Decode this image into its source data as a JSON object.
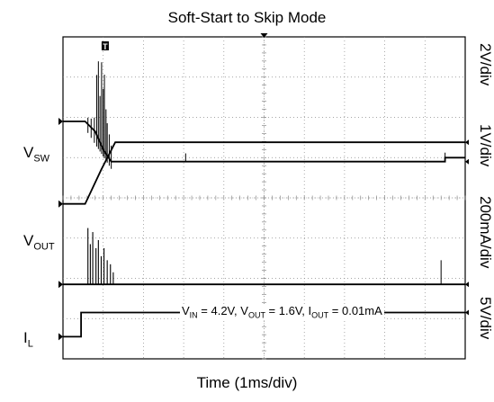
{
  "chart_data": {
    "type": "line",
    "title": "Soft-Start to Skip Mode",
    "xlabel": "Time (1ms/div)",
    "grid": true,
    "divisions": {
      "x": 10,
      "y": 8
    },
    "x_range_ms": [
      0,
      10
    ],
    "channel_labels": [
      {
        "main": "V",
        "sub": "SW"
      },
      {
        "main": "V",
        "sub": "OUT"
      },
      {
        "main": "I",
        "sub": "L"
      }
    ],
    "scales": [
      "2V/div",
      "1V/div",
      "200mA/div",
      "5V/div"
    ],
    "annotation": {
      "vin": "V",
      "vin_sub": "IN",
      "vin_val": " = 4.2V, ",
      "vout": "V",
      "vout_sub": "OUT",
      "vout_val": " = 1.6V, ",
      "iout": "I",
      "iout_sub": "OUT",
      "iout_val": " = 0.01mA"
    },
    "series": [
      {
        "id": "trace-vsw-top",
        "points_ms_div": [
          [
            0,
            2.1
          ],
          [
            0.55,
            2.1
          ],
          [
            0.8,
            2.35
          ],
          [
            1.0,
            2.8
          ],
          [
            1.2,
            3.1
          ],
          [
            9.5,
            3.1
          ],
          [
            9.5,
            3.0
          ],
          [
            10,
            3.0
          ]
        ]
      },
      {
        "id": "trace-vsw-ramp",
        "points_ms_div": [
          [
            0,
            4.15
          ],
          [
            0.55,
            4.15
          ],
          [
            0.95,
            3.3
          ],
          [
            1.3,
            2.62
          ],
          [
            10,
            2.62
          ]
        ]
      },
      {
        "id": "trace-vout",
        "points_ms_div": [
          [
            0,
            6.15
          ],
          [
            10,
            6.15
          ]
        ]
      },
      {
        "id": "trace-il",
        "points_ms_div": [
          [
            0,
            7.45
          ],
          [
            0.45,
            7.45
          ],
          [
            0.45,
            6.85
          ],
          [
            10,
            6.85
          ]
        ]
      }
    ],
    "markers": {
      "trigger": "T"
    }
  }
}
